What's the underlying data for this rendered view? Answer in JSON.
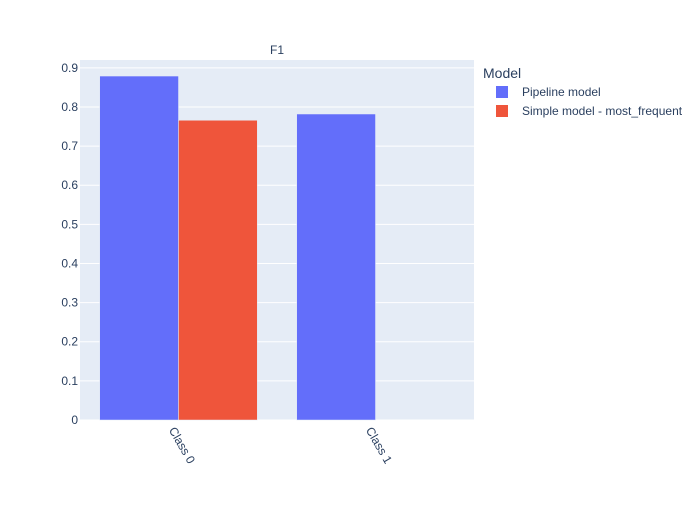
{
  "chart_data": {
    "type": "bar",
    "title": "F1",
    "xlabel": "",
    "ylabel": "",
    "categories": [
      "Class 0",
      "Class 1"
    ],
    "series": [
      {
        "name": "Pipeline model",
        "values": [
          0.879,
          0.782
        ],
        "color": "#636efa"
      },
      {
        "name": "Simple model - most_frequent",
        "values": [
          0.766,
          null
        ],
        "color": "#ef553b"
      }
    ],
    "ylim": [
      0,
      0.92
    ],
    "yticks": [
      "0",
      "0.1",
      "0.2",
      "0.3",
      "0.4",
      "0.5",
      "0.6",
      "0.7",
      "0.8",
      "0.9"
    ],
    "grid": true,
    "legend": {
      "title": "Model",
      "placement": "top-right"
    },
    "colors": {
      "plot_bg": "#e5ecf6",
      "grid": "#ffffff",
      "text": "#2a3f5f"
    }
  }
}
